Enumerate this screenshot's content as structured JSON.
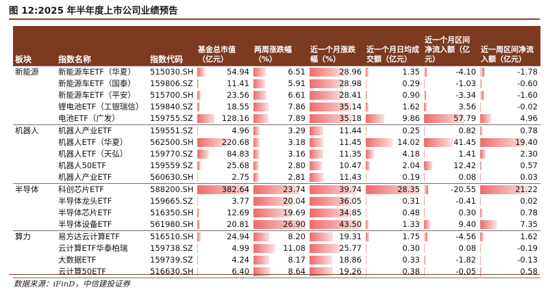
{
  "title": "图 12:2025 年半年度上市公司业绩预告",
  "source": "数据来源：iFinD，中信建投证券",
  "columns": {
    "sector": "板块",
    "name": "指数名称",
    "code": "指数代码",
    "aum": "基金总市值（亿元）",
    "two_week": "两周涨跌幅（%）",
    "one_month": "近一个月涨跌幅（%）",
    "daily_volume": "近一个月日均成交额（亿元）",
    "month_inflow": "近一个月区间净流入额（亿元）",
    "week_inflow": "近一周区间净流入额（亿元）"
  },
  "groups": [
    {
      "sector": "新能源",
      "rows": [
        {
          "name": "新能源车ETF（华夏）",
          "code": "515030.SH",
          "aum": "54.94",
          "two_week": "6.51",
          "one_month": "28.96",
          "daily_volume": "1.35",
          "month_inflow": "-4.10",
          "week_inflow": "-1.78"
        },
        {
          "name": "新能源车ETF（国泰）",
          "code": "159806.SZ",
          "aum": "11.41",
          "two_week": "5.91",
          "one_month": "28.98",
          "daily_volume": "0.29",
          "month_inflow": "-1.03",
          "week_inflow": "-0.60"
        },
        {
          "name": "新能源车ETF（平安）",
          "code": "515700.SH",
          "aum": "23.56",
          "two_week": "6.61",
          "one_month": "28.41",
          "daily_volume": "0.90",
          "month_inflow": "-3.34",
          "week_inflow": "-1.60"
        },
        {
          "name": "锂电池ETF（工银瑞信）",
          "code": "159840.SZ",
          "aum": "18.55",
          "two_week": "7.86",
          "one_month": "35.14",
          "daily_volume": "1.62",
          "month_inflow": "3.56",
          "week_inflow": "-0.02"
        },
        {
          "name": "电池ETF（广发）",
          "code": "159755.SZ",
          "aum": "128.16",
          "two_week": "7.89",
          "one_month": "35.18",
          "daily_volume": "9.86",
          "month_inflow": "57.79",
          "week_inflow": "4.96"
        }
      ]
    },
    {
      "sector": "机器人",
      "rows": [
        {
          "name": "机器人产业ETF",
          "code": "159551.SZ",
          "aum": "4.96",
          "two_week": "3.29",
          "one_month": "11.44",
          "daily_volume": "0.25",
          "month_inflow": "0.82",
          "week_inflow": "0.78"
        },
        {
          "name": "机器人ETF（华夏）",
          "code": "562500.SH",
          "aum": "220.68",
          "two_week": "3.18",
          "one_month": "11.45",
          "daily_volume": "14.02",
          "month_inflow": "41.45",
          "week_inflow": "19.40"
        },
        {
          "name": "机器人ETF（天弘）",
          "code": "159770.SZ",
          "aum": "84.83",
          "two_week": "3.16",
          "one_month": "11.35",
          "daily_volume": "4.18",
          "month_inflow": "1.41",
          "week_inflow": "2.30"
        },
        {
          "name": "机器人50ETF",
          "code": "159559.SZ",
          "aum": "25.68",
          "two_week": "2.80",
          "one_month": "10.47",
          "daily_volume": "2.04",
          "month_inflow": "12.42",
          "week_inflow": "0.57"
        },
        {
          "name": "机器人产业ETF",
          "code": "560630.SH",
          "aum": "2.75",
          "two_week": "2.81",
          "one_month": "11.43",
          "daily_volume": "0.19",
          "month_inflow": "0.08",
          "week_inflow": "0.03"
        }
      ]
    },
    {
      "sector": "半导体",
      "rows": [
        {
          "name": "科创芯片ETF",
          "code": "588200.SH",
          "aum": "382.64",
          "two_week": "23.74",
          "one_month": "39.74",
          "daily_volume": "28.35",
          "month_inflow": "-20.55",
          "week_inflow": "21.22"
        },
        {
          "name": "半导体龙头ETF",
          "code": "159665.SZ",
          "aum": "3.77",
          "two_week": "20.04",
          "one_month": "36.05",
          "daily_volume": "0.31",
          "month_inflow": "-0.41",
          "week_inflow": "0.02"
        },
        {
          "name": "半导体芯片ETF",
          "code": "516350.SH",
          "aum": "12.69",
          "two_week": "19.69",
          "one_month": "34.85",
          "daily_volume": "0.48",
          "month_inflow": "0.30",
          "week_inflow": "0.78"
        },
        {
          "name": "半导体设备ETF",
          "code": "561980.SH",
          "aum": "20.81",
          "two_week": "26.90",
          "one_month": "43.50",
          "daily_volume": "1.33",
          "month_inflow": "9.40",
          "week_inflow": "7.35"
        }
      ]
    },
    {
      "sector": "算力",
      "rows": [
        {
          "name": "易方达云计算ETF",
          "code": "516510.SH",
          "aum": "24.94",
          "two_week": "8.20",
          "one_month": "19.31",
          "daily_volume": "1.75",
          "month_inflow": "-4.56",
          "week_inflow": "1.62"
        },
        {
          "name": "云计算ETF华泰柏瑞",
          "code": "159738.SZ",
          "aum": "4.99",
          "two_week": "11.08",
          "one_month": "25.77",
          "daily_volume": "0.30",
          "month_inflow": "0.08",
          "week_inflow": "-0.19"
        },
        {
          "name": "大数据ETF",
          "code": "159739.SZ",
          "aum": "4.24",
          "two_week": "8.17",
          "one_month": "18.86",
          "daily_volume": "0.33",
          "month_inflow": "-1.82",
          "week_inflow": "-0.13"
        },
        {
          "name": "云计算50ETF",
          "code": "516630.SH",
          "aum": "6.40",
          "two_week": "8.64",
          "one_month": "19.26",
          "daily_volume": "0.38",
          "month_inflow": "-0.05",
          "week_inflow": "0.58"
        }
      ]
    }
  ]
}
